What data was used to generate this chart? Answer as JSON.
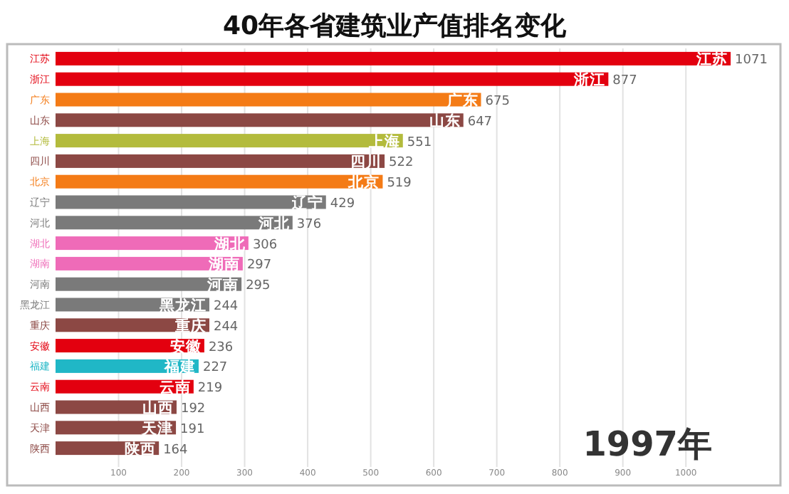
{
  "chart_data": {
    "type": "bar",
    "orientation": "horizontal",
    "title": "40年各省建筑业产值排名变化",
    "categories": [
      "江苏",
      "浙江",
      "广东",
      "山东",
      "上海",
      "四川",
      "北京",
      "辽宁",
      "河北",
      "湖北",
      "湖南",
      "河南",
      "黑龙江",
      "重庆",
      "安徽",
      "福建",
      "云南",
      "山西",
      "天津",
      "陕西"
    ],
    "values": [
      1071,
      877,
      675,
      647,
      551,
      522,
      519,
      429,
      376,
      306,
      297,
      295,
      244,
      244,
      236,
      227,
      219,
      192,
      191,
      164
    ],
    "colors": [
      "#e3000f",
      "#e3000f",
      "#f47b16",
      "#8c4844",
      "#b3bb3c",
      "#8c4844",
      "#f47b16",
      "#7a7a7a",
      "#7a7a7a",
      "#ef6bb8",
      "#ef6bb8",
      "#7a7a7a",
      "#7a7a7a",
      "#8c4844",
      "#e3000f",
      "#20b7c6",
      "#e3000f",
      "#8c4844",
      "#8c4844",
      "#8c4844"
    ],
    "xlim": [
      0,
      1150
    ],
    "xticks": [
      100,
      200,
      300,
      400,
      500,
      600,
      700,
      800,
      900,
      1000
    ],
    "grid": "x",
    "data_labels": true,
    "annotations": [
      "1997年"
    ]
  }
}
